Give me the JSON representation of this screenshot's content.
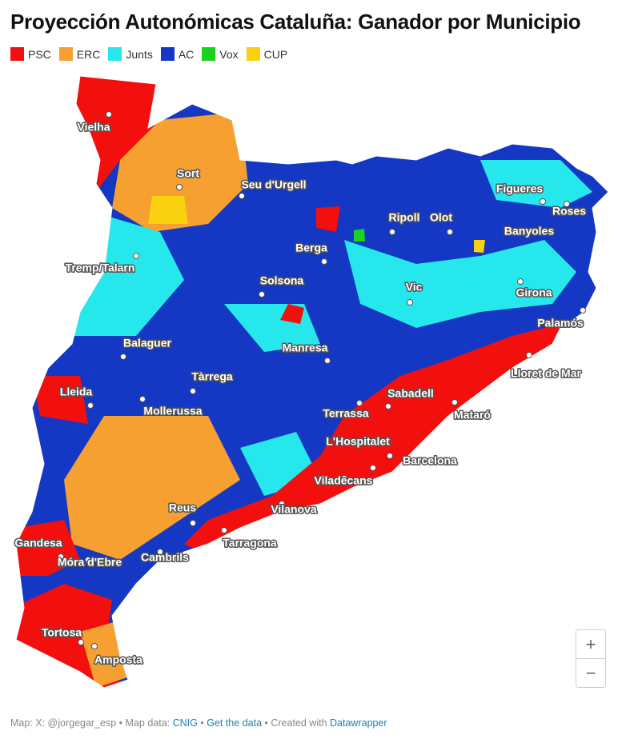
{
  "title": "Proyección Autonómicas Cataluña: Ganador por Municipio",
  "legend": [
    {
      "name": "PSC",
      "color": "#f40f0f"
    },
    {
      "name": "ERC",
      "color": "#f5a030"
    },
    {
      "name": "Junts",
      "color": "#26e8ec"
    },
    {
      "name": "AC",
      "color": "#1438c4"
    },
    {
      "name": "Vox",
      "color": "#19d41c"
    },
    {
      "name": "CUP",
      "color": "#f9d10e"
    }
  ],
  "cities": [
    "Vielha",
    "Sort",
    "Seu d'Urgell",
    "Tremp/Talarn",
    "Ripoll",
    "Olot",
    "Figueres",
    "Roses",
    "Banyoles",
    "Berga",
    "Solsona",
    "Vic",
    "Girona",
    "Palamós",
    "Balaguer",
    "Manresa",
    "Tàrrega",
    "Lleida",
    "Mollerussa",
    "Sabadell",
    "Terrassa",
    "Lloret de Mar",
    "Mataró",
    "L'Hospitalet",
    "Barcelona",
    "Viladecans",
    "Vilanova",
    "Reus",
    "Tarragona",
    "Cambrils",
    "Gandesa",
    "Móra d'Ebre",
    "Tortosa",
    "Amposta"
  ],
  "footer": [
    "Map: X: @jorgegar_esp • Map data:",
    "CNIG",
    "•",
    "Get the data",
    "• Created with",
    "Datawrapper"
  ],
  "zoom": [
    "+",
    "−"
  ]
}
